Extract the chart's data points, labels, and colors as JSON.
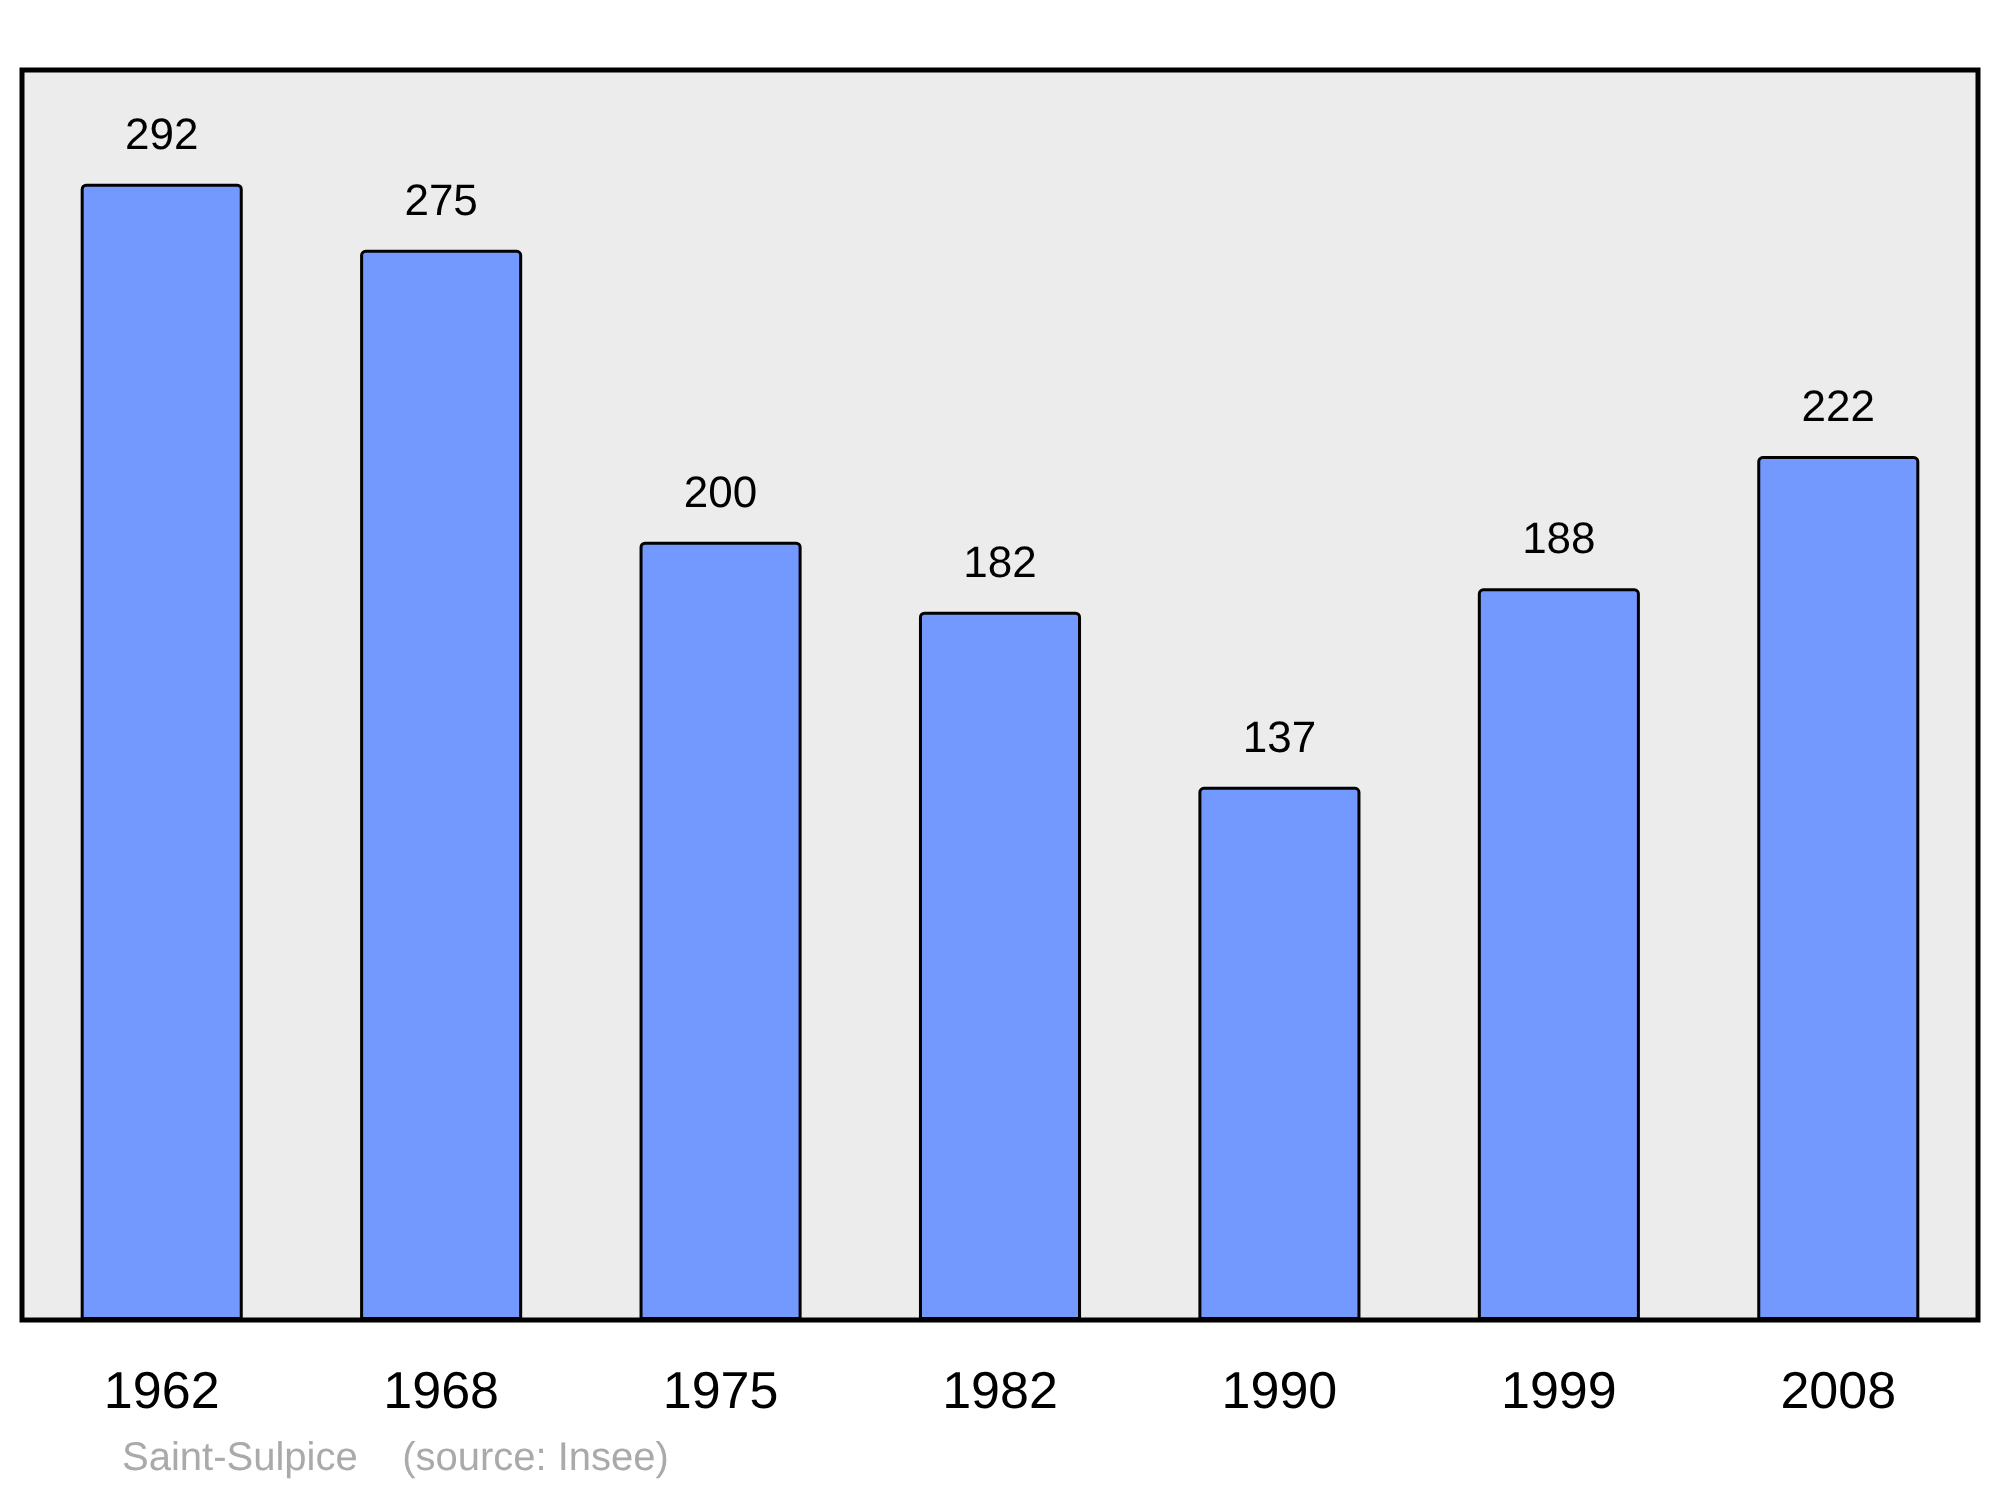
{
  "chart_data": {
    "type": "bar",
    "categories": [
      "1962",
      "1968",
      "1975",
      "1982",
      "1990",
      "1999",
      "2008"
    ],
    "values": [
      292,
      275,
      200,
      182,
      137,
      188,
      222
    ],
    "color": "#7399ff",
    "data_labels": true,
    "grid": false,
    "annotations": [
      "Saint-Sulpice",
      "(source: Insee)"
    ]
  }
}
